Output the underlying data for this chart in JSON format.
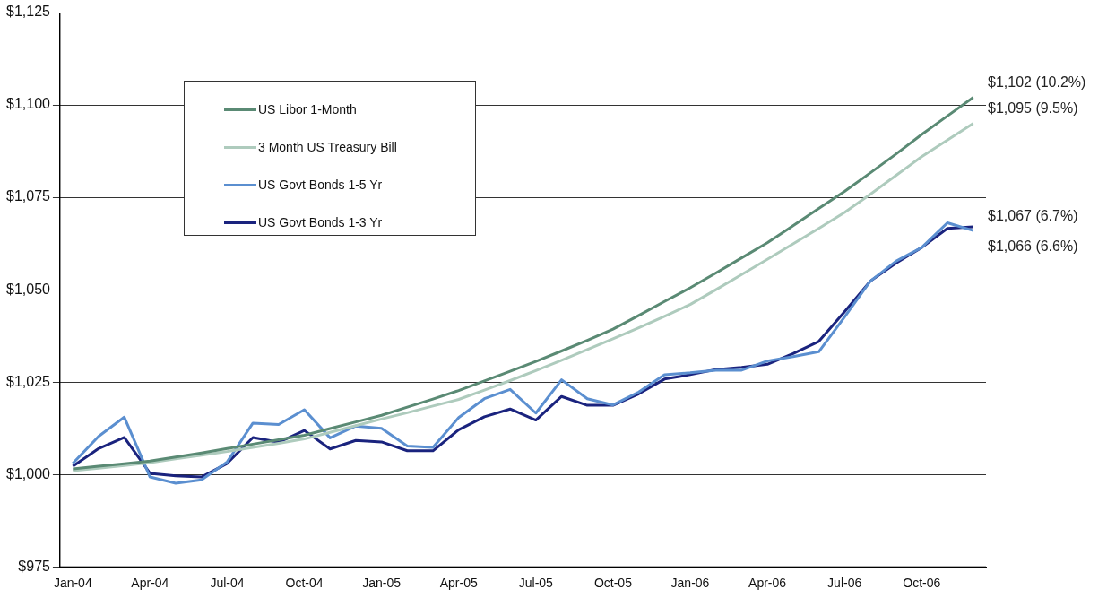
{
  "chart_data": {
    "type": "line",
    "categories": [
      "Jan-04",
      null,
      null,
      "Apr-04",
      null,
      null,
      "Jul-04",
      null,
      null,
      "Oct-04",
      null,
      null,
      "Jan-05",
      null,
      null,
      "Apr-05",
      null,
      null,
      "Jul-05",
      null,
      null,
      "Oct-05",
      null,
      null,
      "Jan-06",
      null,
      null,
      "Apr-06",
      null,
      null,
      "Jul-06",
      null,
      null,
      "Oct-06",
      null,
      null
    ],
    "series": [
      {
        "name": "US Libor 1-Month",
        "color": "#5a8a74",
        "values": [
          1001.5,
          1002.2,
          1002.9,
          1003.6,
          1004.7,
          1005.8,
          1007.0,
          1008.2,
          1009.4,
          1010.6,
          1012.4,
          1014.2,
          1016.0,
          1018.2,
          1020.4,
          1022.7,
          1025.3,
          1027.9,
          1030.6,
          1033.4,
          1036.3,
          1039.3,
          1043.0,
          1046.8,
          1050.5,
          1054.5,
          1058.6,
          1062.7,
          1067.3,
          1072.0,
          1076.6,
          1081.6,
          1086.7,
          1092.0,
          1097.0,
          1102.0
        ]
      },
      {
        "name": "3 Month US Treasury Bill",
        "color": "#aecbbd",
        "values": [
          1001.0,
          1001.7,
          1002.4,
          1003.2,
          1004.2,
          1005.2,
          1006.2,
          1007.3,
          1008.4,
          1009.6,
          1011.4,
          1013.2,
          1015.0,
          1016.7,
          1018.5,
          1020.3,
          1022.8,
          1025.4,
          1028.1,
          1030.9,
          1033.8,
          1036.7,
          1039.7,
          1042.8,
          1046.0,
          1050.0,
          1054.1,
          1058.2,
          1062.4,
          1066.6,
          1070.9,
          1075.8,
          1080.9,
          1086.0,
          1090.5,
          1095.0
        ]
      },
      {
        "name": "US Govt Bonds 1-5 Yr",
        "color": "#5b8fd0",
        "values": [
          1003.0,
          1010.3,
          1015.5,
          999.3,
          997.6,
          998.5,
          1003.4,
          1013.9,
          1013.5,
          1017.5,
          1009.9,
          1013.1,
          1012.5,
          1007.7,
          1007.3,
          1015.4,
          1020.5,
          1023.0,
          1016.6,
          1025.6,
          1020.5,
          1018.8,
          1022.3,
          1027.0,
          1027.5,
          1028.2,
          1028.2,
          1030.7,
          1031.9,
          1033.2,
          1042.6,
          1052.3,
          1057.7,
          1061.4,
          1068.1,
          1066.0
        ]
      },
      {
        "name": "US Govt Bonds 1-3 Yr",
        "color": "#1a237e",
        "values": [
          1002.2,
          1007.0,
          1010.0,
          1000.3,
          999.6,
          999.3,
          1003.0,
          1010.0,
          1008.7,
          1011.9,
          1006.9,
          1009.2,
          1008.8,
          1006.4,
          1006.4,
          1012.1,
          1015.6,
          1017.7,
          1014.7,
          1021.1,
          1018.7,
          1018.7,
          1021.8,
          1025.8,
          1027.0,
          1028.4,
          1029.0,
          1029.8,
          1032.7,
          1036.0,
          1044.0,
          1052.3,
          1057.2,
          1061.4,
          1066.6,
          1067.0
        ]
      }
    ],
    "ylim": [
      975,
      1125
    ],
    "yticks": [
      {
        "value": 975,
        "label": "$975"
      },
      {
        "value": 1000,
        "label": "$1,000"
      },
      {
        "value": 1025,
        "label": "$1,025"
      },
      {
        "value": 1050,
        "label": "$1,050"
      },
      {
        "value": 1075,
        "label": "$1,075"
      },
      {
        "value": 1100,
        "label": "$1,100"
      },
      {
        "value": 1125,
        "label": "$1,125"
      }
    ],
    "grid": "y",
    "legend": "top left",
    "marker": "none",
    "line_style": "solid",
    "annotations": [
      "$1,102 (10.2%)",
      "$1,095 (9.5%)",
      "$1,067 (6.7%)",
      "$1,066 (6.6%)"
    ]
  }
}
